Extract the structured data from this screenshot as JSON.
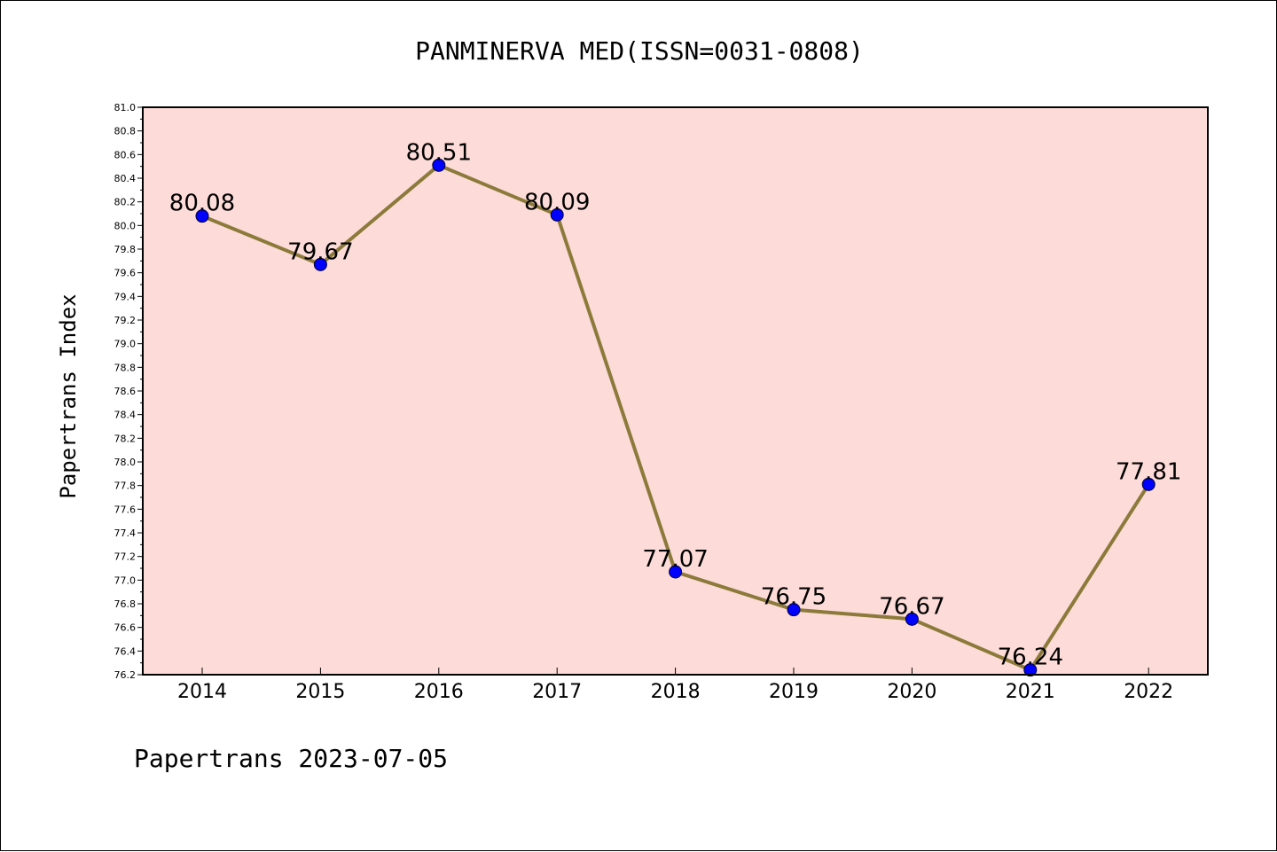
{
  "chart_data": {
    "type": "line",
    "title": "PANMINERVA MED(ISSN=0031-0808)",
    "ylabel": "Papertrans Index",
    "xlabel": "",
    "categories": [
      "2014",
      "2015",
      "2016",
      "2017",
      "2018",
      "2019",
      "2020",
      "2021",
      "2022"
    ],
    "values": [
      80.08,
      79.67,
      80.51,
      80.09,
      77.07,
      76.75,
      76.67,
      76.24,
      77.81
    ],
    "data_labels": [
      "80.08",
      "79.67",
      "80.51",
      "80.09",
      "77.07",
      "76.75",
      "76.67",
      "76.24",
      "77.81"
    ],
    "ylim": [
      76.2,
      81.0
    ],
    "y_ticks": [
      "76.2",
      "76.4",
      "76.6",
      "76.8",
      "77.0",
      "77.2",
      "77.4",
      "77.6",
      "77.8",
      "78.0",
      "78.2",
      "78.4",
      "78.6",
      "78.8",
      "79.0",
      "79.2",
      "79.4",
      "79.6",
      "79.8",
      "80.0",
      "80.2",
      "80.4",
      "80.6",
      "80.8",
      "81.0"
    ],
    "grid": false,
    "legend": "none",
    "colors": {
      "plot_background": "#fddbd8",
      "line": "#8b7a3a",
      "marker": "#0000ff"
    }
  },
  "footer": {
    "text": "Papertrans 2023-07-05"
  }
}
